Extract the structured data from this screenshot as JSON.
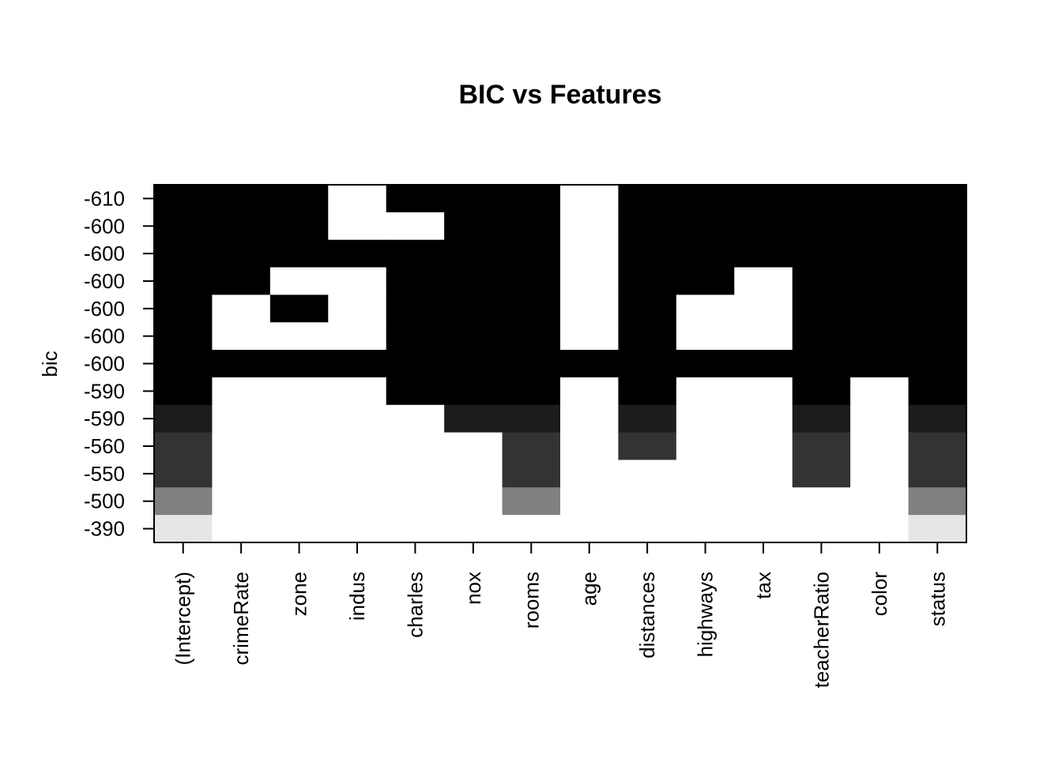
{
  "chart_data": {
    "type": "heatmap",
    "title": "BIC vs Features",
    "xlabel": "",
    "ylabel": "bic",
    "grid": false,
    "legend": "none",
    "features": [
      "(Intercept)",
      "crimeRate",
      "zone",
      "indus",
      "charles",
      "nox",
      "rooms",
      "age",
      "distances",
      "highways",
      "tax",
      "teacherRatio",
      "color",
      "status"
    ],
    "bic_labels_top_to_bottom": [
      "-610",
      "-600",
      "-600",
      "-600",
      "-600",
      "-600",
      "-600",
      "-590",
      "-590",
      "-560",
      "-550",
      "-500",
      "-390"
    ],
    "row_shades_top_to_bottom": [
      "#000000",
      "#000000",
      "#000000",
      "#000000",
      "#000000",
      "#000000",
      "#000000",
      "#000000",
      "#1c1c1c",
      "#333333",
      "#333333",
      "#808080",
      "#e6e6e6"
    ],
    "included_top_to_bottom": [
      [
        1,
        1,
        1,
        0,
        1,
        1,
        1,
        0,
        1,
        1,
        1,
        1,
        1,
        1
      ],
      [
        1,
        1,
        1,
        0,
        0,
        1,
        1,
        0,
        1,
        1,
        1,
        1,
        1,
        1
      ],
      [
        1,
        1,
        1,
        1,
        1,
        1,
        1,
        0,
        1,
        1,
        1,
        1,
        1,
        1
      ],
      [
        1,
        1,
        0,
        0,
        1,
        1,
        1,
        0,
        1,
        1,
        0,
        1,
        1,
        1
      ],
      [
        1,
        0,
        1,
        0,
        1,
        1,
        1,
        0,
        1,
        0,
        0,
        1,
        1,
        1
      ],
      [
        1,
        0,
        0,
        0,
        1,
        1,
        1,
        0,
        1,
        0,
        0,
        1,
        1,
        1
      ],
      [
        1,
        1,
        1,
        1,
        1,
        1,
        1,
        1,
        1,
        1,
        1,
        1,
        1,
        1
      ],
      [
        1,
        0,
        0,
        0,
        1,
        1,
        1,
        0,
        1,
        0,
        0,
        1,
        0,
        1
      ],
      [
        1,
        0,
        0,
        0,
        0,
        1,
        1,
        0,
        1,
        0,
        0,
        1,
        0,
        1
      ],
      [
        1,
        0,
        0,
        0,
        0,
        0,
        1,
        0,
        1,
        0,
        0,
        1,
        0,
        1
      ],
      [
        1,
        0,
        0,
        0,
        0,
        0,
        1,
        0,
        0,
        0,
        0,
        1,
        0,
        1
      ],
      [
        1,
        0,
        0,
        0,
        0,
        0,
        1,
        0,
        0,
        0,
        0,
        0,
        0,
        1
      ],
      [
        1,
        0,
        0,
        0,
        0,
        0,
        0,
        0,
        0,
        0,
        0,
        0,
        0,
        1
      ]
    ]
  }
}
